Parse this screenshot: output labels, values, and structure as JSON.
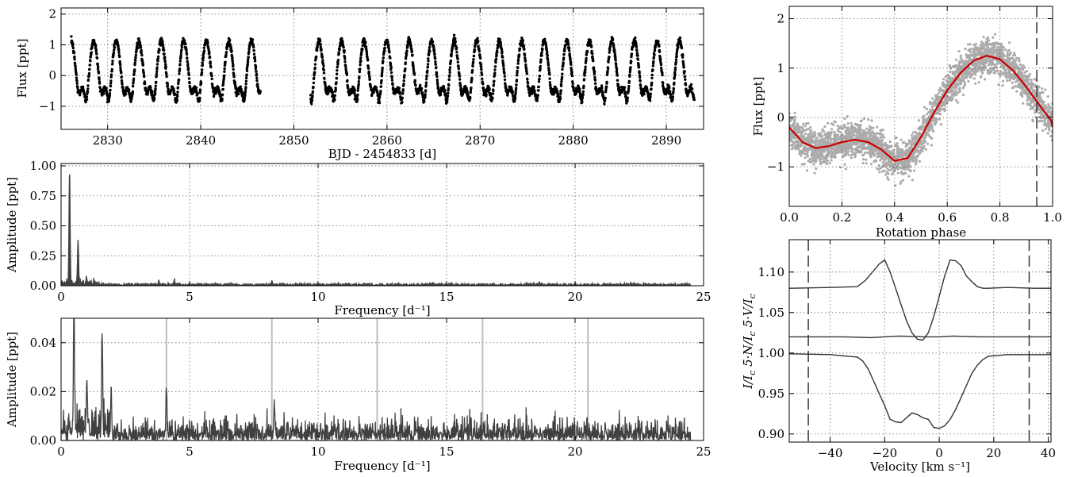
{
  "chart_data": [
    {
      "id": "light_curve",
      "type": "scatter",
      "xlabel": "BJD - 2454833 [d]",
      "ylabel": "Flux [ppt]",
      "xlim": [
        2825,
        2894
      ],
      "ylim": [
        -1.75,
        2.2
      ],
      "xticks": [
        2830,
        2840,
        2850,
        2860,
        2870,
        2880,
        2890
      ],
      "yticks": [
        -1,
        0,
        1,
        2
      ],
      "grid": true,
      "point_color": "#000000",
      "segments": [
        {
          "x_start": 2826.1,
          "x_end": 2846.4
        },
        {
          "x_start": 2851.8,
          "x_end": 2893.0
        }
      ],
      "rotation_period_days": 2.42,
      "amplitude_ppt": 1.15
    },
    {
      "id": "periodogram_full",
      "type": "line",
      "xlabel": "Frequency [d⁻¹]",
      "ylabel": "Amplitude  [ppt]",
      "xlim": [
        0,
        25
      ],
      "ylim": [
        0,
        1.02
      ],
      "xticks": [
        0,
        5,
        10,
        15,
        20,
        25
      ],
      "yticks": [
        0.0,
        0.25,
        0.5,
        0.75,
        1.0
      ],
      "ytick_labels": [
        "0.00",
        "0.25",
        "0.50",
        "0.75",
        "1.00"
      ],
      "grid": true,
      "line_color": "#404040",
      "peaks": [
        {
          "x": 0.33,
          "y": 0.95
        },
        {
          "x": 0.66,
          "y": 0.37
        },
        {
          "x": 0.99,
          "y": 0.05
        },
        {
          "x": 3.8,
          "y": 0.04
        },
        {
          "x": 4.4,
          "y": 0.04
        },
        {
          "x": 8.2,
          "y": 0.03
        }
      ],
      "noise_level": 0.02,
      "x_max_data": 24.5
    },
    {
      "id": "periodogram_prewhitened",
      "type": "line",
      "xlabel": "Frequency [d⁻¹]",
      "ylabel": "Amplitude  [ppt]",
      "xlim": [
        0,
        25
      ],
      "ylim": [
        0,
        0.05
      ],
      "xticks": [
        0,
        5,
        10,
        15,
        20,
        25
      ],
      "yticks": [
        0.0,
        0.02,
        0.04
      ],
      "ytick_labels": [
        "0.00",
        "0.02",
        "0.04"
      ],
      "grid": true,
      "line_color": "#404040",
      "vline_color": "#bdbdbd",
      "vlines": [
        4.1,
        8.2,
        12.3,
        16.4,
        20.5
      ],
      "peaks": [
        {
          "x": 0.5,
          "y": 0.046
        },
        {
          "x": 1.0,
          "y": 0.023
        },
        {
          "x": 1.6,
          "y": 0.041
        },
        {
          "x": 1.95,
          "y": 0.02
        },
        {
          "x": 4.1,
          "y": 0.02
        },
        {
          "x": 8.3,
          "y": 0.014
        }
      ],
      "noise_level": 0.007,
      "x_max_data": 24.5
    },
    {
      "id": "phase_curve",
      "type": "scatter",
      "xlabel": "Rotation phase",
      "ylabel": "Flux [ppt]",
      "xlim": [
        0,
        1
      ],
      "ylim": [
        -1.8,
        2.25
      ],
      "xticks": [
        0.0,
        0.2,
        0.4,
        0.6,
        0.8,
        1.0
      ],
      "xtick_labels": [
        "0.0",
        "0.2",
        "0.4",
        "0.6",
        "0.8",
        "1.0"
      ],
      "yticks": [
        -1,
        0,
        1,
        2
      ],
      "grid": true,
      "point_color": "#000000",
      "fit_color": "#cc0000",
      "vline_phase": 0.94,
      "fit": {
        "x": [
          0.0,
          0.05,
          0.1,
          0.15,
          0.2,
          0.25,
          0.3,
          0.35,
          0.4,
          0.45,
          0.5,
          0.55,
          0.6,
          0.65,
          0.7,
          0.75,
          0.8,
          0.85,
          0.9,
          0.95,
          1.0
        ],
        "y": [
          -0.2,
          -0.5,
          -0.62,
          -0.58,
          -0.5,
          -0.45,
          -0.5,
          -0.65,
          -0.88,
          -0.82,
          -0.4,
          0.1,
          0.55,
          0.9,
          1.15,
          1.25,
          1.18,
          0.95,
          0.62,
          0.25,
          -0.1
        ]
      }
    },
    {
      "id": "lsd_profiles",
      "type": "line",
      "xlabel": "Velocity [km s⁻¹]",
      "ylabel": "I/I",
      "ylabel_sub": "c",
      "ylabel_mid": "5·N/I",
      "ylabel_mid_sub": "c",
      "ylabel_top": "5·V/I",
      "ylabel_top_sub": "c",
      "xlim": [
        -55,
        41
      ],
      "ylim": [
        0.89,
        1.14
      ],
      "xticks": [
        -40,
        -20,
        0,
        20,
        40
      ],
      "yticks": [
        0.9,
        0.95,
        1.0,
        1.05,
        1.1
      ],
      "ytick_labels": [
        "0.90",
        "0.95",
        "1.00",
        "1.05",
        "1.10"
      ],
      "grid": true,
      "line_color": "#333333",
      "vlines": [
        -48,
        33
      ],
      "series": [
        {
          "x": [
            -55,
            -40,
            -30,
            -28,
            -26,
            -24,
            -22,
            -20,
            -18,
            -16,
            -14,
            -12,
            -10,
            -8,
            -6,
            -4,
            -2,
            0,
            2,
            4,
            6,
            8,
            10,
            12,
            14,
            16,
            18,
            25,
            35,
            41
          ],
          "y": [
            0.999,
            0.998,
            0.995,
            0.99,
            0.98,
            0.965,
            0.95,
            0.935,
            0.918,
            0.915,
            0.914,
            0.92,
            0.926,
            0.924,
            0.92,
            0.918,
            0.908,
            0.907,
            0.91,
            0.918,
            0.93,
            0.945,
            0.96,
            0.975,
            0.985,
            0.992,
            0.996,
            0.998,
            0.998,
            0.998
          ]
        },
        {
          "x": [
            -55,
            -45,
            -35,
            -25,
            -15,
            -5,
            0,
            5,
            15,
            25,
            35,
            41
          ],
          "y": [
            1.02,
            1.02,
            1.02,
            1.019,
            1.021,
            1.02,
            1.02,
            1.021,
            1.02,
            1.02,
            1.02,
            1.02
          ]
        },
        {
          "x": [
            -55,
            -40,
            -30,
            -27,
            -24,
            -22,
            -20,
            -18,
            -16,
            -14,
            -12,
            -10,
            -8,
            -6,
            -4,
            -2,
            0,
            2,
            4,
            6,
            8,
            10,
            12,
            14,
            16,
            18,
            25,
            35,
            41
          ],
          "y": [
            1.08,
            1.081,
            1.082,
            1.09,
            1.102,
            1.11,
            1.115,
            1.1,
            1.08,
            1.06,
            1.04,
            1.025,
            1.017,
            1.016,
            1.025,
            1.045,
            1.07,
            1.095,
            1.115,
            1.114,
            1.108,
            1.095,
            1.088,
            1.082,
            1.08,
            1.08,
            1.081,
            1.08,
            1.08
          ]
        }
      ]
    }
  ]
}
